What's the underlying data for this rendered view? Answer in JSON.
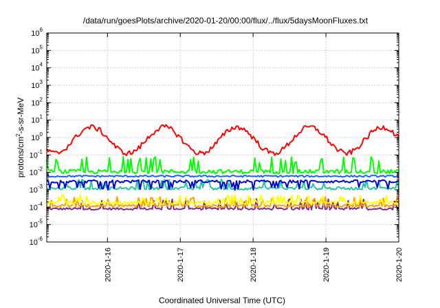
{
  "chart_data": {
    "type": "line",
    "title": "/data/run/goesPlots/archive/2020-01-20/00:00/flux/../flux/5daysMoonFluxes.txt",
    "xlabel": "Coordinated Universal Time (UTC)",
    "ylabel_parts": [
      "protons/cm",
      "2",
      "-s-sr-MeV"
    ],
    "y_scale": "log",
    "ylim_exponents": [
      -6,
      6
    ],
    "ytick_exponents": [
      -6,
      -5,
      -4,
      -3,
      -2,
      -1,
      0,
      1,
      2,
      3,
      4,
      5,
      6
    ],
    "ytick_base": "10",
    "xlim": [
      "2020-01-15 04:00",
      "2020-01-20 00:00"
    ],
    "xticks": [
      {
        "label": "2020-1-16",
        "time": "2020-01-16 00:00"
      },
      {
        "label": "2020-1-17",
        "time": "2020-01-17 00:00"
      },
      {
        "label": "2020-1-18",
        "time": "2020-01-18 00:00"
      },
      {
        "label": "2020-1-19",
        "time": "2020-01-19 00:00"
      },
      {
        "label": "2020-1-20",
        "time": "2020-01-20 00:00"
      }
    ],
    "grid": true,
    "series": [
      {
        "color": "#ff0000",
        "base": 0.7,
        "variation": "diurnal",
        "amplitude": 0.75,
        "noise": 0.15
      },
      {
        "color": "#00ff00",
        "base": 0.011,
        "variation": "spiky",
        "spike_to": 0.08,
        "noise": 0.12
      },
      {
        "color": "#1f5fff",
        "base": 0.006,
        "variation": "flat",
        "noise": 0.05
      },
      {
        "color": "#0000cc",
        "base": 0.003,
        "variation": "dippy",
        "dip_to": 0.0012,
        "noise": 0.08
      },
      {
        "color": "#1fc8a0",
        "base": 0.0012,
        "variation": "spiky",
        "spike_to": 0.004,
        "noise": 0.08
      },
      {
        "color": "#ffff00",
        "base": 0.00018,
        "variation": "spiky",
        "spike_to": 0.0005,
        "noise": 0.1
      },
      {
        "color": "#ff9e00",
        "base": 0.00012,
        "variation": "spiky",
        "spike_to": 0.0004,
        "noise": 0.08
      },
      {
        "color": "#7b2d7b",
        "base": 8e-05,
        "variation": "spiky",
        "spike_to": 0.0003,
        "noise": 0.06
      }
    ]
  }
}
